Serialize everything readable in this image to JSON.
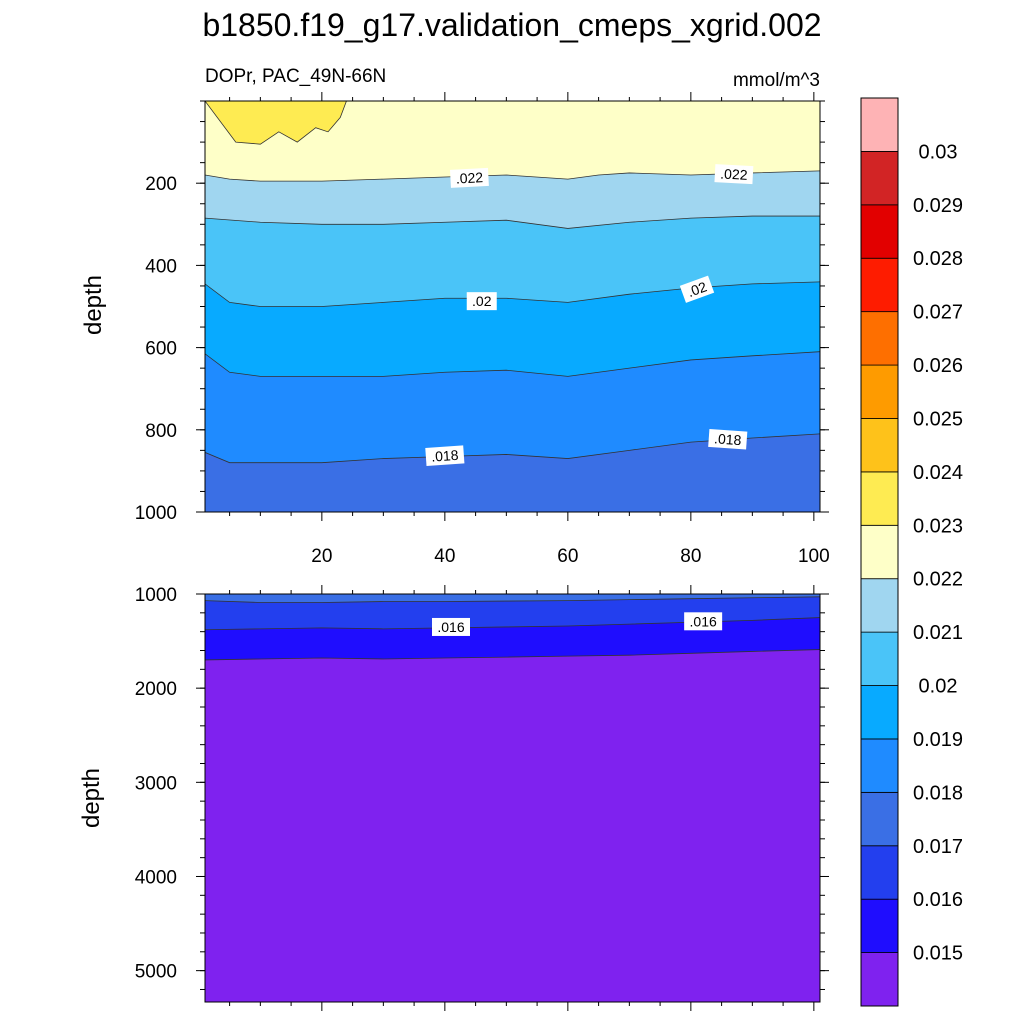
{
  "chart_data": {
    "type": "heatmap",
    "title": "b1850.f19_g17.validation_cmeps_xgrid.002",
    "subtitle_left": "DOPr, PAC_49N-66N",
    "subtitle_right": "mmol/m^3",
    "ylabel": "depth",
    "xlim": [
      1,
      101
    ],
    "x_ticks": [
      "20",
      "40",
      "60",
      "80",
      "100"
    ],
    "x_tick_values": [
      20,
      40,
      60,
      80,
      100
    ],
    "top_panel": {
      "ylim": [
        0,
        1000
      ],
      "y_ticks": [
        "200",
        "400",
        "600",
        "800",
        "1000"
      ],
      "y_tick_values": [
        200,
        400,
        600,
        800,
        1000
      ],
      "contour_depths": [
        {
          "level": 0.023,
          "x": [
            1,
            6,
            10,
            13,
            16,
            19,
            21,
            23,
            24
          ],
          "depth": [
            0,
            100,
            105,
            75,
            100,
            65,
            75,
            40,
            0
          ],
          "closes_top": true
        },
        {
          "level": 0.022,
          "x": [
            1,
            5,
            10,
            20,
            30,
            40,
            50,
            60,
            65,
            70,
            80,
            90,
            101
          ],
          "depth": [
            180,
            190,
            195,
            195,
            190,
            185,
            180,
            190,
            180,
            175,
            180,
            175,
            170
          ]
        },
        {
          "level": 0.021,
          "x": [
            1,
            10,
            20,
            30,
            40,
            50,
            60,
            70,
            80,
            90,
            101
          ],
          "depth": [
            285,
            295,
            300,
            300,
            295,
            290,
            310,
            295,
            285,
            280,
            280
          ]
        },
        {
          "level": 0.02,
          "x": [
            1,
            5,
            10,
            20,
            30,
            40,
            50,
            60,
            70,
            80,
            90,
            101
          ],
          "depth": [
            445,
            490,
            500,
            500,
            490,
            480,
            480,
            490,
            470,
            455,
            445,
            440
          ]
        },
        {
          "level": 0.019,
          "x": [
            1,
            5,
            10,
            20,
            30,
            40,
            50,
            60,
            70,
            80,
            90,
            101
          ],
          "depth": [
            615,
            660,
            670,
            670,
            670,
            660,
            655,
            670,
            650,
            630,
            620,
            610
          ]
        },
        {
          "level": 0.018,
          "x": [
            1,
            5,
            10,
            20,
            30,
            40,
            50,
            60,
            70,
            80,
            90,
            101
          ],
          "depth": [
            855,
            880,
            880,
            880,
            870,
            865,
            860,
            870,
            850,
            830,
            820,
            810
          ]
        }
      ],
      "labels": [
        {
          "text": ".022",
          "x": 44,
          "depth": 187,
          "rotate": -3
        },
        {
          "text": ".022",
          "x": 87,
          "depth": 178,
          "rotate": 3
        },
        {
          "text": ".02",
          "x": 46,
          "depth": 487,
          "rotate": 0
        },
        {
          "text": ".02",
          "x": 81,
          "depth": 458,
          "rotate": -20
        },
        {
          "text": ".018",
          "x": 40,
          "depth": 863,
          "rotate": -4
        },
        {
          "text": ".018",
          "x": 86,
          "depth": 823,
          "rotate": 4
        }
      ]
    },
    "bottom_panel": {
      "ylim": [
        1000,
        5333
      ],
      "y_ticks": [
        "1000",
        "2000",
        "3000",
        "4000",
        "5000"
      ],
      "y_tick_values": [
        1000,
        2000,
        3000,
        4000,
        5000
      ],
      "contour_depths": [
        {
          "level": 0.017,
          "x": [
            1,
            10,
            20,
            30,
            40,
            50,
            60,
            70,
            80,
            90,
            101
          ],
          "depth": [
            1070,
            1090,
            1090,
            1080,
            1080,
            1075,
            1070,
            1060,
            1050,
            1040,
            1030
          ]
        },
        {
          "level": 0.016,
          "x": [
            1,
            10,
            20,
            30,
            40,
            50,
            60,
            70,
            80,
            90,
            101
          ],
          "depth": [
            1380,
            1370,
            1360,
            1370,
            1360,
            1350,
            1340,
            1320,
            1300,
            1280,
            1250
          ]
        },
        {
          "level": 0.015,
          "x": [
            1,
            10,
            20,
            30,
            40,
            50,
            60,
            70,
            80,
            90,
            101
          ],
          "depth": [
            1700,
            1690,
            1680,
            1690,
            1680,
            1670,
            1660,
            1650,
            1630,
            1610,
            1590
          ]
        }
      ],
      "labels": [
        {
          "text": ".016",
          "x": 41,
          "depth": 1350,
          "rotate": 0
        },
        {
          "text": ".016",
          "x": 82,
          "depth": 1290,
          "rotate": 0
        }
      ]
    },
    "colorbar": {
      "colors": [
        "#7f22ef",
        "#1f0dfe",
        "#233fee",
        "#3a6fe5",
        "#1f8bff",
        "#08aaff",
        "#4ac4f8",
        "#a0d6f0",
        "#feffc8",
        "#feeb52",
        "#fec21a",
        "#fe9b00",
        "#fe6f00",
        "#fe1c00",
        "#e20000",
        "#d22425",
        "#feb3b5"
      ],
      "labels": [
        "0.015",
        "0.016",
        "0.017",
        "0.018",
        "0.019",
        "0.02",
        "0.021",
        "0.022",
        "0.023",
        "0.024",
        "0.025",
        "0.026",
        "0.027",
        "0.028",
        "0.029",
        "0.03"
      ],
      "levels": [
        0.015,
        0.016,
        0.017,
        0.018,
        0.019,
        0.02,
        0.021,
        0.022,
        0.023,
        0.024,
        0.025,
        0.026,
        0.027,
        0.028,
        0.029,
        0.03
      ]
    }
  }
}
